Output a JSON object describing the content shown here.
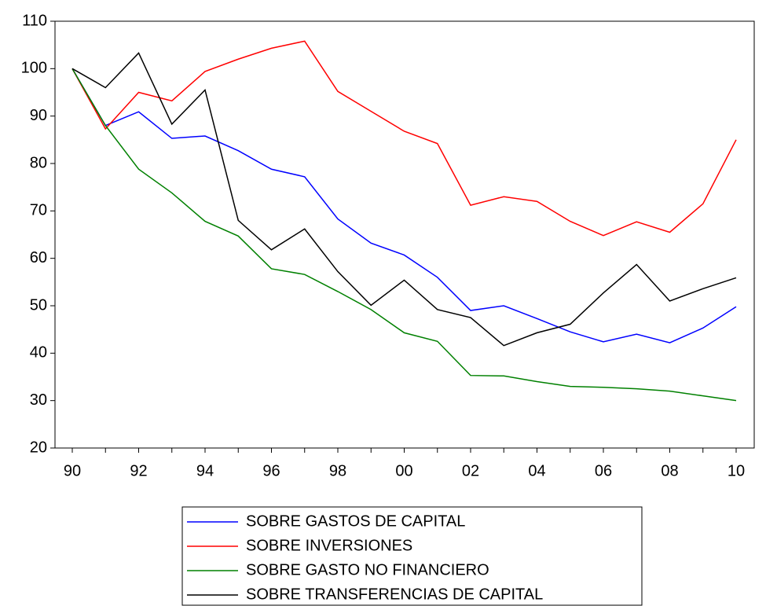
{
  "chart_data": {
    "type": "line",
    "categories": [
      "90",
      null,
      "92",
      null,
      "94",
      null,
      "96",
      null,
      "98",
      null,
      "00",
      null,
      "02",
      null,
      "04",
      null,
      "06",
      null,
      "08",
      null,
      "10"
    ],
    "ylim": [
      20,
      110
    ],
    "yticks": [
      20,
      30,
      40,
      50,
      60,
      70,
      80,
      90,
      100,
      110
    ],
    "grid": false,
    "series": [
      {
        "name": "SOBRE GASTOS DE CAPITAL",
        "color": "#0000ff",
        "values": [
          100,
          88,
          90.9,
          85.3,
          85.8,
          82.7,
          78.8,
          77.2,
          68.3,
          63.2,
          60.7,
          56,
          49,
          50,
          47.3,
          44.5,
          42.4,
          44,
          42.2,
          45.3,
          49.8
        ]
      },
      {
        "name": "SOBRE INVERSIONES",
        "color": "#ff0000",
        "values": [
          100,
          87.3,
          95,
          93.2,
          99.4,
          102,
          104.3,
          105.8,
          95.2,
          91,
          86.8,
          84.2,
          71.2,
          73,
          72,
          67.8,
          64.8,
          67.7,
          65.5,
          71.5,
          85
        ]
      },
      {
        "name": "SOBRE GASTO NO FINANCIERO",
        "color": "#008000",
        "values": [
          100,
          88,
          78.8,
          73.8,
          67.8,
          64.7,
          57.8,
          56.6,
          53,
          49.2,
          44.3,
          42.5,
          35.3,
          35.2,
          34,
          33,
          32.8,
          32.5,
          32,
          31,
          30
        ]
      },
      {
        "name": "SOBRE TRANSFERENCIAS DE CAPITAL",
        "color": "#000000",
        "values": [
          100,
          96,
          103.3,
          88.3,
          95.5,
          68,
          61.8,
          66.2,
          57.2,
          50.1,
          55.4,
          49.2,
          47.5,
          41.6,
          44.3,
          46.1,
          52.7,
          58.7,
          51,
          53.6,
          55.9
        ]
      }
    ]
  }
}
